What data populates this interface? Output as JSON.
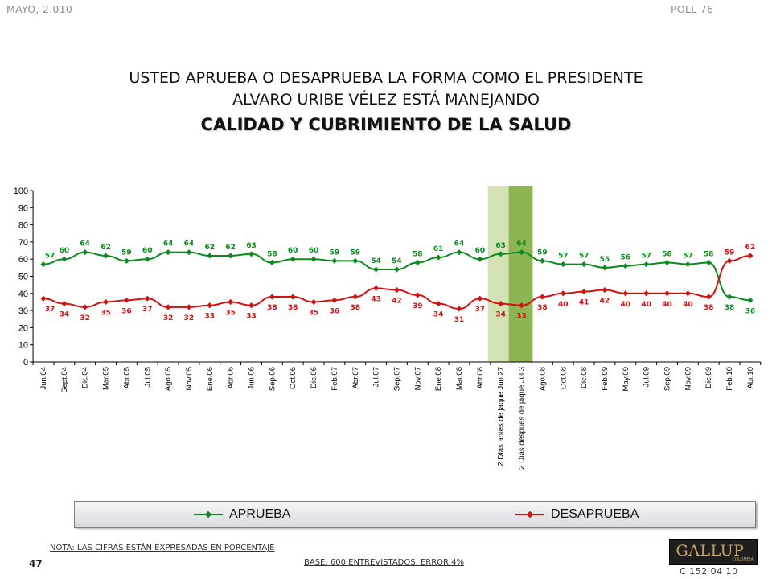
{
  "header": {
    "left": "MAYO, 2.010",
    "right": "POLL 76"
  },
  "title": {
    "line1": "USTED APRUEBA O DESAPRUEBA LA FORMA COMO EL PRESIDENTE",
    "line2": "ALVARO URIBE VÉLEZ ESTÁ MANEJANDO",
    "line3": "CALIDAD Y CUBRIMIENTO DE LA SALUD"
  },
  "chart_data": {
    "type": "line",
    "categories": [
      "Jun.04",
      "Sept.04",
      "Dic.04",
      "Mar.05",
      "Abr.05",
      "Jul.05",
      "Ago.05",
      "Nov.05",
      "Ene.06",
      "Abr.06",
      "Jun.06",
      "Sep.06",
      "Oct.06",
      "Dic.06",
      "Feb.07",
      "Abr.07",
      "Jul.07",
      "Sep.07",
      "Nov.07",
      "Ene.08",
      "Mar.08",
      "Abr.08",
      "2 Días antes de jaque Jun 27",
      "2 Días después de jaque Jul 3",
      "Ago.08",
      "Oct.08",
      "Dic.08",
      "Feb.09",
      "May.09",
      "Jul.09",
      "Sep.09",
      "Nov.09",
      "Dic.09",
      "Feb.10",
      "Abr.10"
    ],
    "series": [
      {
        "name": "APRUEBA",
        "color": "#0b8a1f",
        "values": [
          57,
          60,
          64,
          62,
          59,
          60,
          64,
          64,
          62,
          62,
          63,
          58,
          60,
          60,
          59,
          59,
          54,
          54,
          58,
          61,
          64,
          60,
          63,
          64,
          59,
          57,
          57,
          55,
          56,
          57,
          58,
          57,
          58,
          38,
          36
        ]
      },
      {
        "name": "DESAPRUEBA",
        "color": "#d41111",
        "values": [
          37,
          34,
          32,
          35,
          36,
          37,
          32,
          32,
          33,
          35,
          33,
          38,
          38,
          35,
          36,
          38,
          43,
          42,
          39,
          34,
          31,
          37,
          34,
          33,
          38,
          40,
          41,
          42,
          40,
          40,
          40,
          40,
          38,
          59,
          62
        ]
      }
    ],
    "ylim": [
      0,
      100
    ],
    "yticks": [
      0,
      10,
      20,
      30,
      40,
      50,
      60,
      70,
      80,
      90,
      100
    ],
    "highlight_bands": [
      {
        "category_index": 22,
        "color": "#d4e3b4"
      },
      {
        "category_index": 23,
        "color": "#8db553"
      }
    ],
    "grid": false,
    "legend_position": "bottom"
  },
  "legend": {
    "aprueba": "APRUEBA",
    "desaprueba": "DESAPRUEBA"
  },
  "footer": {
    "nota": "NOTA: LAS CIFRAS ESTÁN EXPRESADAS EN PORCENTAJE",
    "base": "BASE: 600 ENTREVISTADOS, ERROR 4%",
    "page": "47",
    "code": "C 152 04 10",
    "logo": "GALLUP",
    "logo_sub": "COLOMBIA"
  }
}
